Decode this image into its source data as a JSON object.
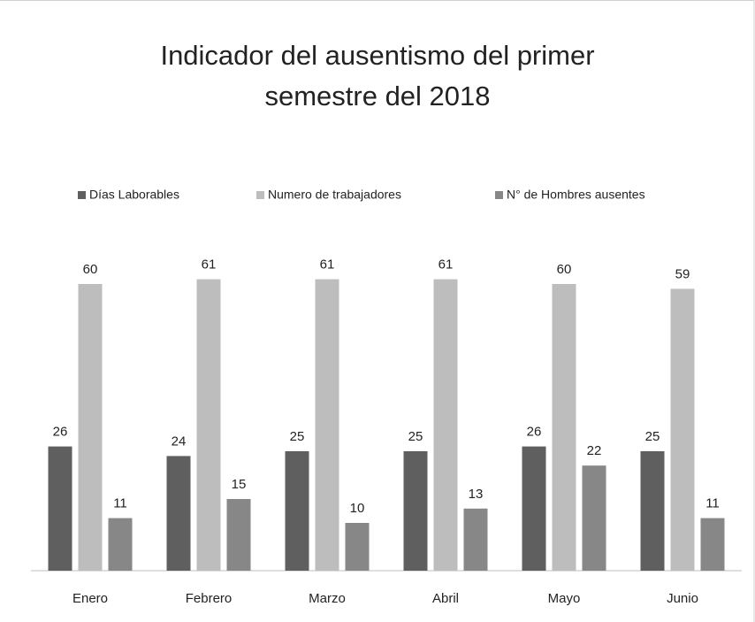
{
  "chart_data": {
    "type": "bar",
    "title": "Indicador del ausentismo del primer semestre del 2018",
    "categories": [
      "Enero",
      "Febrero",
      "Marzo",
      "Abril",
      "Mayo",
      "Junio"
    ],
    "series": [
      {
        "name": "Días Laborables",
        "color": "#5f5f5f",
        "values": [
          26,
          24,
          25,
          25,
          26,
          25
        ]
      },
      {
        "name": "Numero de trabajadores",
        "color": "#bdbdbd",
        "values": [
          60,
          61,
          61,
          61,
          60,
          59
        ]
      },
      {
        "name": "N° de Hombres ausentes",
        "color": "#878787",
        "values": [
          11,
          15,
          10,
          13,
          22,
          11
        ]
      }
    ],
    "ylim": [
      0,
      70
    ],
    "legend": "top",
    "data_labels": true
  }
}
